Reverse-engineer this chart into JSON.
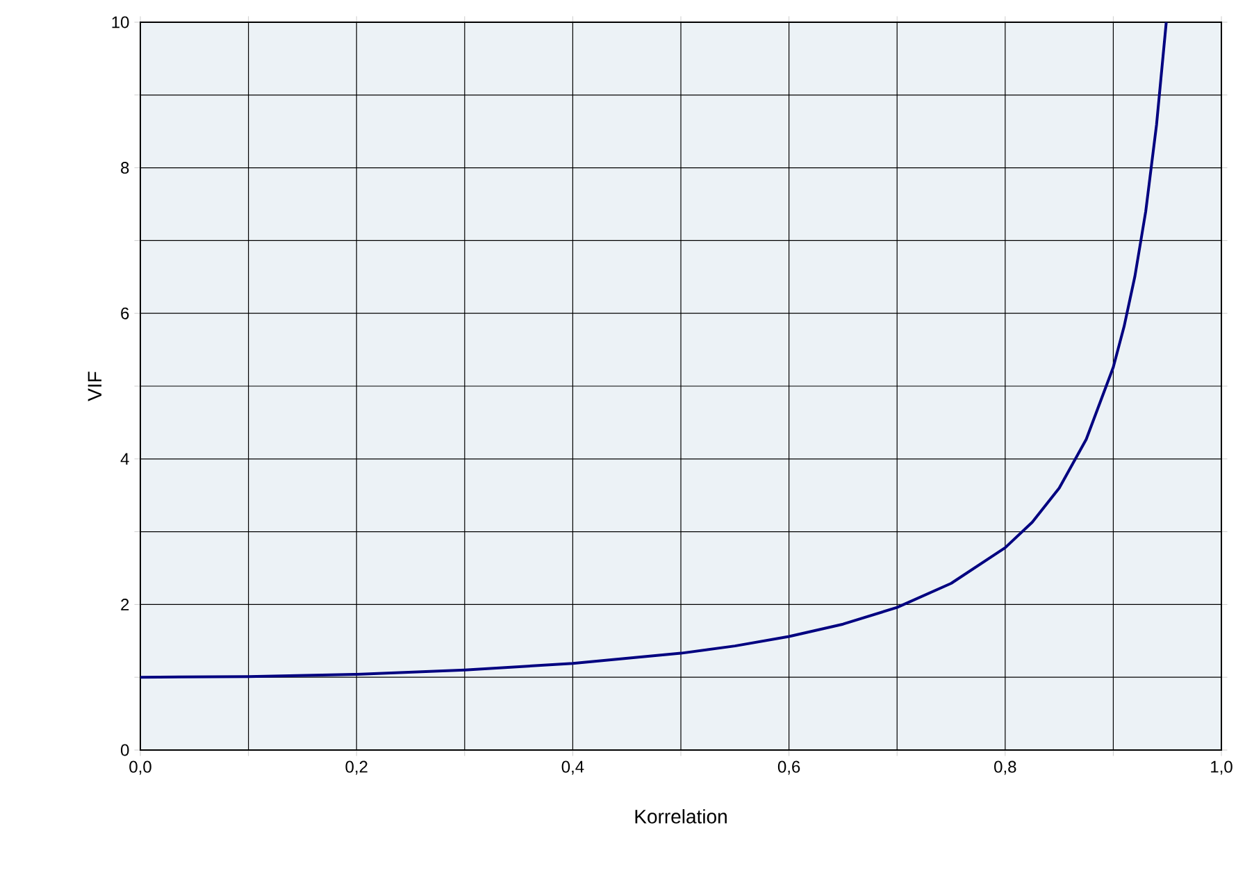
{
  "chart_data": {
    "type": "line",
    "xlabel": "Korrelation",
    "ylabel": "VIF",
    "x": [
      0,
      0.1,
      0.2,
      0.3,
      0.4,
      0.5,
      0.55,
      0.6,
      0.65,
      0.7,
      0.75,
      0.8,
      0.825,
      0.85,
      0.875,
      0.9,
      0.91,
      0.92,
      0.93,
      0.94,
      0.949
    ],
    "series": [
      {
        "color": "#000080",
        "values": [
          1,
          1.01,
          1.04,
          1.1,
          1.19,
          1.33,
          1.43,
          1.56,
          1.73,
          1.96,
          2.29,
          2.78,
          3.13,
          3.6,
          4.27,
          5.26,
          5.82,
          6.51,
          7.4,
          8.59,
          10
        ]
      }
    ],
    "xlim": [
      0,
      1
    ],
    "ylim": [
      0,
      10
    ],
    "xticks": [
      {
        "value": 0,
        "label": "0,0"
      },
      {
        "value": 0.1,
        "label": null
      },
      {
        "value": 0.2,
        "label": "0,2"
      },
      {
        "value": 0.3,
        "label": null
      },
      {
        "value": 0.4,
        "label": "0,4"
      },
      {
        "value": 0.5,
        "label": null
      },
      {
        "value": 0.6,
        "label": "0,6"
      },
      {
        "value": 0.7,
        "label": null
      },
      {
        "value": 0.8,
        "label": "0,8"
      },
      {
        "value": 0.9,
        "label": null
      },
      {
        "value": 1,
        "label": "1,0"
      }
    ],
    "yticks": [
      0,
      {
        "value": 1,
        "label": null
      },
      2,
      {
        "value": 3,
        "label": null
      },
      4,
      {
        "value": 5,
        "label": null
      },
      6,
      {
        "value": 7,
        "label": null
      },
      8,
      {
        "value": 9,
        "label": null
      },
      10
    ],
    "grid": true,
    "marker": "none",
    "line_style": "solid"
  }
}
